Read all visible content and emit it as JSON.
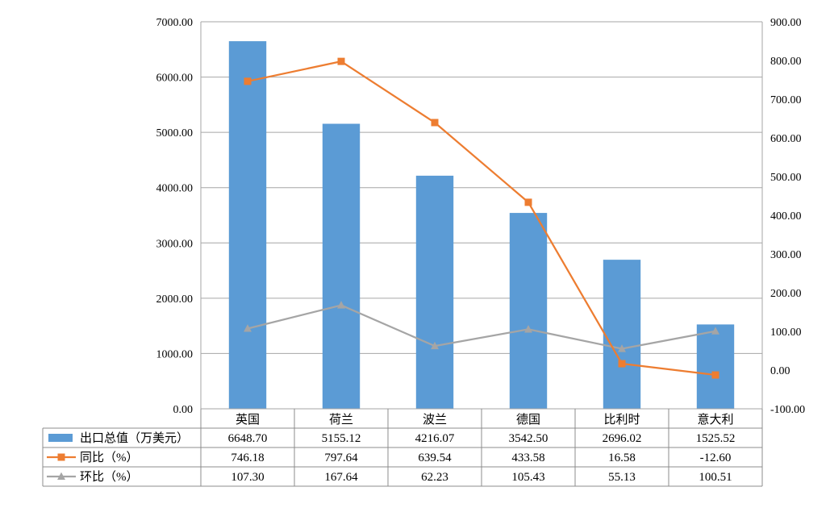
{
  "chart_data": {
    "type": "bar",
    "categories": [
      "英国",
      "荷兰",
      "波兰",
      "德国",
      "比利时",
      "意大利"
    ],
    "series": [
      {
        "name": "出口总值（万美元）",
        "kind": "bar",
        "axis": "left",
        "color": "#5b9bd5",
        "values": [
          6648.7,
          5155.12,
          4216.07,
          3542.5,
          2696.02,
          1525.52
        ],
        "labels": [
          "6648.70",
          "5155.12",
          "4216.07",
          "3542.50",
          "2696.02",
          "1525.52"
        ]
      },
      {
        "name": "同比（%）",
        "kind": "line",
        "axis": "right",
        "color": "#ed7d31",
        "marker": "square",
        "values": [
          746.18,
          797.64,
          639.54,
          433.58,
          16.58,
          -12.6
        ],
        "labels": [
          "746.18",
          "797.64",
          "639.54",
          "433.58",
          "16.58",
          "-12.60"
        ]
      },
      {
        "name": "环比（%）",
        "kind": "line",
        "axis": "right",
        "color": "#a5a5a5",
        "marker": "triangle",
        "values": [
          107.3,
          167.64,
          62.23,
          105.43,
          55.13,
          100.51
        ],
        "labels": [
          "107.30",
          "167.64",
          "62.23",
          "105.43",
          "55.13",
          "100.51"
        ]
      }
    ],
    "y_left": {
      "ylim": [
        0,
        7000
      ],
      "ticks": [
        "0.00",
        "1000.00",
        "2000.00",
        "3000.00",
        "4000.00",
        "5000.00",
        "6000.00",
        "7000.00"
      ]
    },
    "y_right": {
      "ylim": [
        -100,
        900
      ],
      "ticks": [
        "-100.00",
        "0.00",
        "100.00",
        "200.00",
        "300.00",
        "400.00",
        "500.00",
        "600.00",
        "700.00",
        "800.00",
        "900.00"
      ]
    },
    "grid": true,
    "legend": "data-table"
  }
}
